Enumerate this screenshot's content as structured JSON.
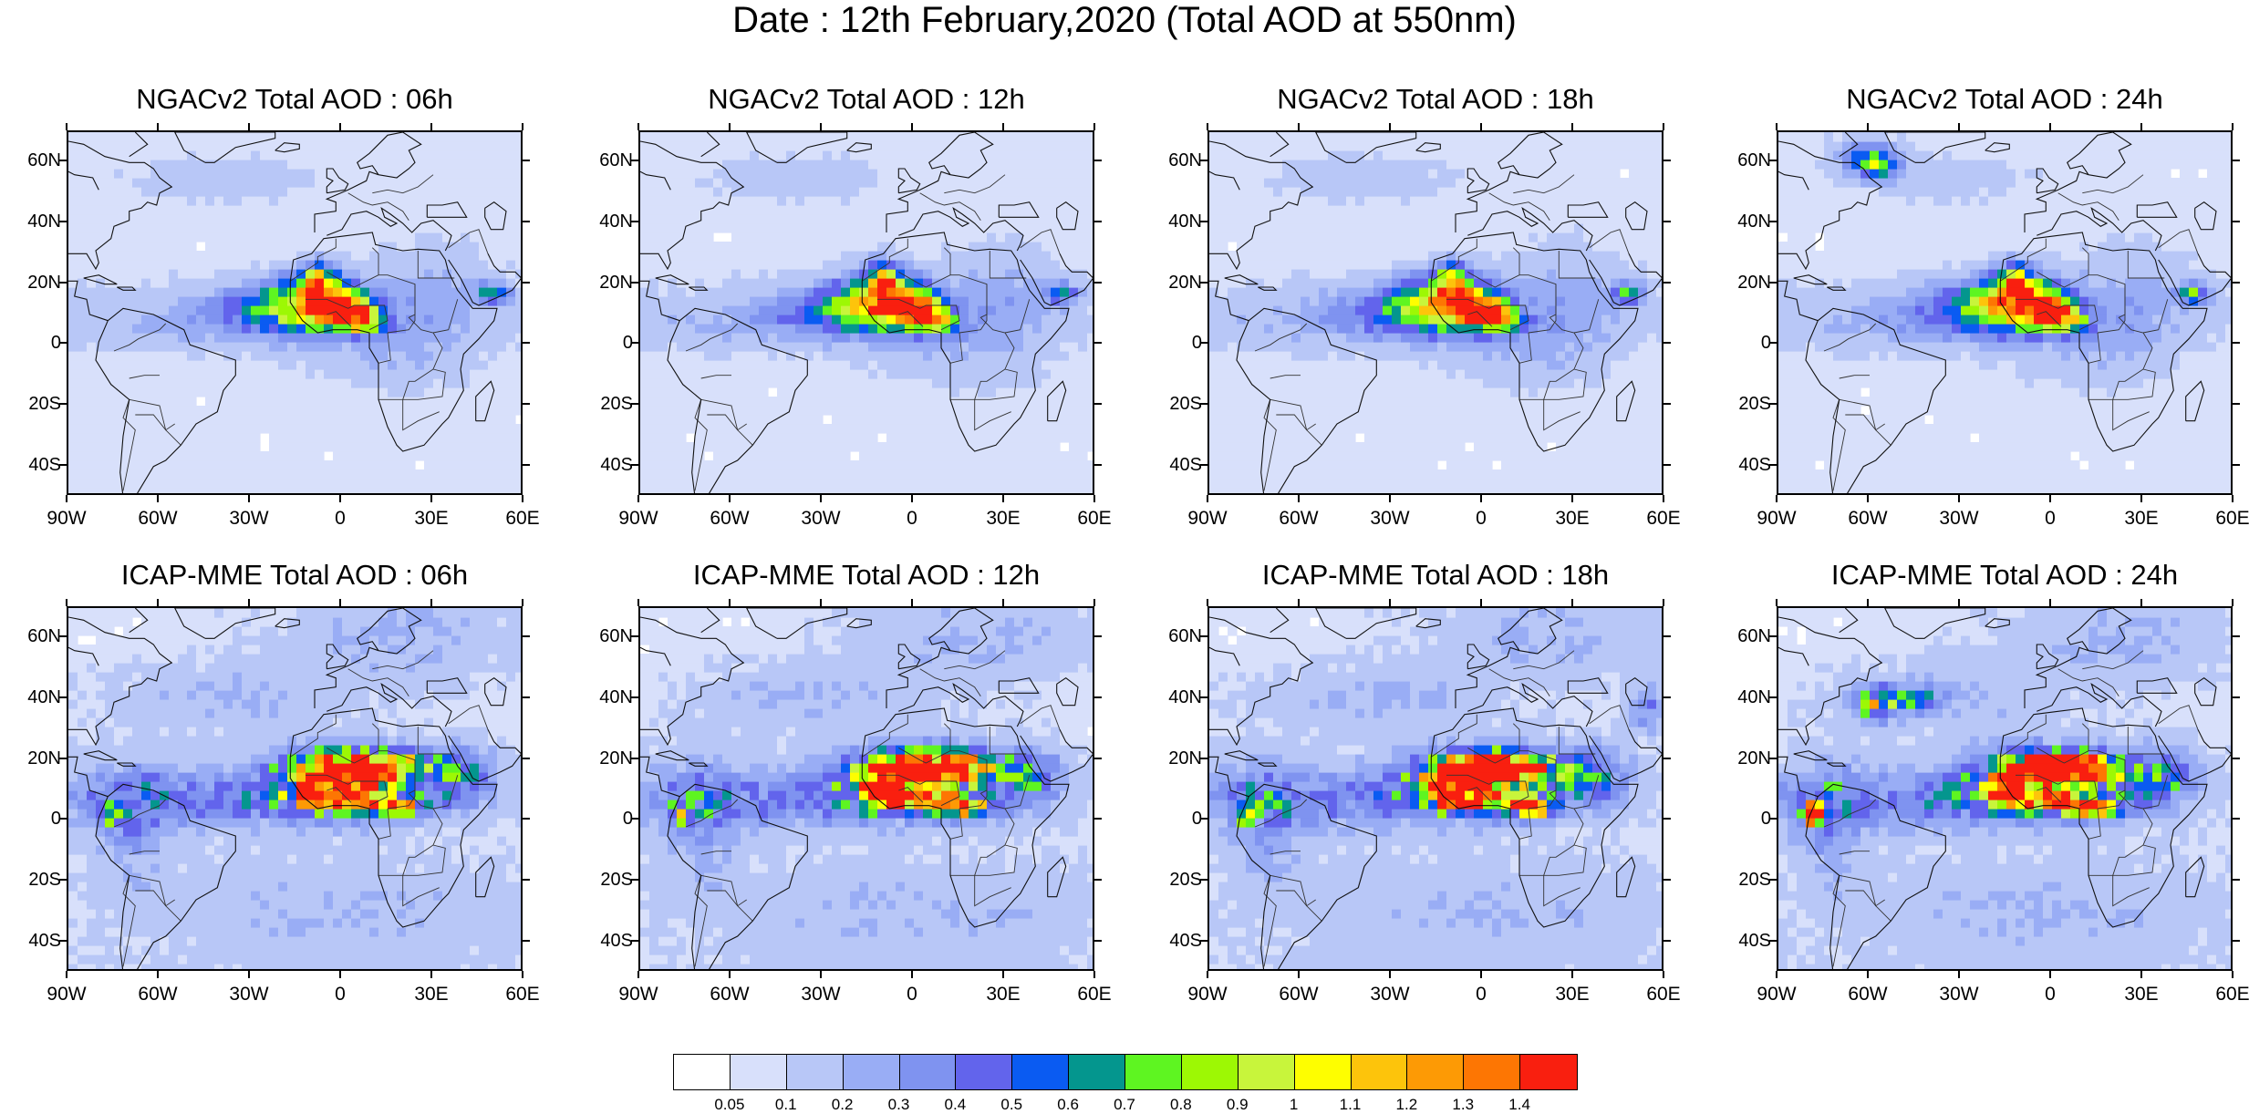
{
  "title": "Date : 12th February,2020 (Total AOD at 550nm)",
  "panels": [
    {
      "title": "NGACv2 Total AOD : 06h",
      "model": "NGACv2",
      "hour": "06h"
    },
    {
      "title": "NGACv2 Total AOD : 12h",
      "model": "NGACv2",
      "hour": "12h"
    },
    {
      "title": "NGACv2 Total AOD : 18h",
      "model": "NGACv2",
      "hour": "18h"
    },
    {
      "title": "NGACv2 Total AOD : 24h",
      "model": "NGACv2",
      "hour": "24h"
    },
    {
      "title": "ICAP-MME Total AOD : 06h",
      "model": "ICAP-MME",
      "hour": "06h"
    },
    {
      "title": "ICAP-MME Total AOD : 12h",
      "model": "ICAP-MME",
      "hour": "12h"
    },
    {
      "title": "ICAP-MME Total AOD : 18h",
      "model": "ICAP-MME",
      "hour": "18h"
    },
    {
      "title": "ICAP-MME Total AOD : 24h",
      "model": "ICAP-MME",
      "hour": "24h"
    }
  ],
  "axes": {
    "lat_labels": [
      "60N",
      "40N",
      "20N",
      "0",
      "20S",
      "40S"
    ],
    "lon_labels": [
      "90W",
      "60W",
      "30W",
      "0",
      "30E",
      "60E"
    ],
    "lon_range": [
      -90,
      60
    ],
    "lat_range": [
      -50,
      70
    ]
  },
  "colorbar": {
    "labels": [
      "0.05",
      "0.1",
      "0.2",
      "0.3",
      "0.4",
      "0.5",
      "0.6",
      "0.7",
      "0.8",
      "0.9",
      "1",
      "1.1",
      "1.2",
      "1.3",
      "1.4"
    ],
    "colors": [
      "#ffffff",
      "#d8e0fb",
      "#b8c7f7",
      "#99adf5",
      "#7f93f0",
      "#6264ec",
      "#0a5bf2",
      "#04968e",
      "#5ef521",
      "#9df804",
      "#c8f53b",
      "#fefe00",
      "#fdc40b",
      "#fd9a05",
      "#fd7603",
      "#f91f0f"
    ]
  }
}
